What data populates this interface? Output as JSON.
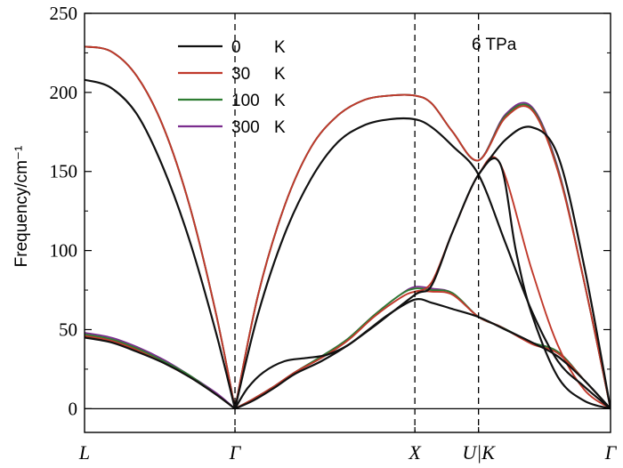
{
  "chart_data": {
    "type": "line",
    "title": "",
    "annotation": "6 TPa",
    "xlabel": "",
    "ylabel": "Frequency/cm⁻¹",
    "ylim": [
      -15,
      250
    ],
    "yticks": [
      0,
      50,
      100,
      150,
      200,
      250
    ],
    "ytick_labels": [
      "0",
      "50",
      "100",
      "150",
      "200",
      "250"
    ],
    "high_symmetry_points": [
      {
        "label": "L",
        "x": 0
      },
      {
        "label": "Γ",
        "x": 0.286
      },
      {
        "label": "X",
        "x": 0.628
      },
      {
        "label": "U|K",
        "x": 0.749
      },
      {
        "label": "Γ",
        "x": 1
      }
    ],
    "vertical_dashed_at": [
      0.286,
      0.628,
      0.749
    ],
    "zero_line": 0,
    "legend": {
      "position": "top-left",
      "entries": [
        {
          "num": "0",
          "unit": "K",
          "color": "#111111"
        },
        {
          "num": "30",
          "unit": "K",
          "color": "#c0392b"
        },
        {
          "num": "100",
          "unit": "K",
          "color": "#2e7d32"
        },
        {
          "num": "300",
          "unit": "K",
          "color": "#7b2d8e"
        }
      ]
    },
    "series": [
      {
        "temperature": "0 K",
        "color": "#111111",
        "branches": [
          {
            "x": [
              0,
              0.05,
              0.1,
              0.15,
              0.2,
              0.25,
              0.286
            ],
            "y": [
              208,
              203,
              186,
              152,
              106,
              48,
              0
            ]
          },
          {
            "x": [
              0,
              0.05,
              0.1,
              0.15,
              0.2,
              0.25,
              0.286
            ],
            "y": [
              45,
              42,
              36,
              29,
              20,
              9,
              0
            ]
          },
          {
            "x": [
              0.286,
              0.33,
              0.38,
              0.43,
              0.48,
              0.53,
              0.58,
              0.628,
              0.66,
              0.7,
              0.749,
              0.8,
              0.85,
              0.9,
              0.95,
              1
            ],
            "y": [
              0,
              60,
              110,
              145,
              168,
              179,
              183,
              183,
              178,
              166,
              148,
              105,
              62,
              30,
              14,
              0
            ]
          },
          {
            "x": [
              0.286,
              0.31,
              0.34,
              0.38,
              0.42,
              0.46,
              0.5,
              0.54,
              0.58,
              0.628,
              0.66,
              0.7,
              0.749,
              0.8,
              0.85,
              0.9,
              0.95,
              1
            ],
            "y": [
              0,
              13,
              23,
              30,
              32,
              34,
              40,
              50,
              60,
              69,
              67,
              63,
              58,
              50,
              42,
              33,
              18,
              0
            ]
          },
          {
            "x": [
              0.286,
              0.32,
              0.36,
              0.4,
              0.45,
              0.5,
              0.55,
              0.628,
              0.66,
              0.7,
              0.749,
              0.79,
              0.82,
              0.85,
              0.9,
              0.95,
              1
            ],
            "y": [
              0,
              5,
              13,
              22,
              30,
              40,
              52,
              72,
              78,
              112,
              148,
              155,
              100,
              60,
              20,
              5,
              0
            ]
          },
          {
            "x": [
              0.749,
              0.8,
              0.85,
              0.9,
              0.95,
              1
            ],
            "y": [
              148,
              170,
              178,
              160,
              90,
              0
            ]
          }
        ]
      },
      {
        "temperature": "30 K",
        "color": "#c0392b",
        "branches": [
          {
            "x": [
              0,
              0.05,
              0.1,
              0.15,
              0.2,
              0.25,
              0.286
            ],
            "y": [
              229,
              226,
              210,
              178,
              128,
              60,
              0
            ]
          },
          {
            "x": [
              0,
              0.05,
              0.1,
              0.15,
              0.2,
              0.25,
              0.286
            ],
            "y": [
              46,
              43,
              37,
              29,
              20,
              9,
              0
            ]
          },
          {
            "x": [
              0.286,
              0.33,
              0.38,
              0.43,
              0.48,
              0.53,
              0.58,
              0.628,
              0.66,
              0.7,
              0.749,
              0.8,
              0.85,
              0.9,
              0.95,
              1
            ],
            "y": [
              0,
              72,
              128,
              165,
              185,
              195,
              198,
              198,
              193,
              175,
              157,
              184,
              189,
              150,
              80,
              0
            ]
          },
          {
            "x": [
              0.286,
              0.32,
              0.36,
              0.4,
              0.45,
              0.5,
              0.55,
              0.6,
              0.628,
              0.66,
              0.7,
              0.749,
              0.79,
              0.85,
              0.9,
              0.95,
              1
            ],
            "y": [
              0,
              6,
              14,
              23,
              32,
              43,
              58,
              70,
              74,
              74,
              72,
              58,
              52,
              41,
              35,
              18,
              0
            ]
          },
          {
            "x": [
              0.628,
              0.66,
              0.7,
              0.749,
              0.79,
              0.85,
              0.9,
              0.95,
              1
            ],
            "y": [
              74,
              80,
              112,
              148,
              155,
              88,
              40,
              12,
              0
            ]
          }
        ]
      },
      {
        "temperature": "100 K",
        "color": "#2e7d32",
        "branches": [
          {
            "x": [
              0,
              0.05,
              0.1,
              0.15,
              0.2,
              0.25,
              0.286
            ],
            "y": [
              229,
              226,
              210,
              178,
              128,
              60,
              0
            ]
          },
          {
            "x": [
              0,
              0.05,
              0.1,
              0.15,
              0.2,
              0.25,
              0.286
            ],
            "y": [
              47,
              44,
              38,
              30,
              21,
              9,
              0
            ]
          },
          {
            "x": [
              0.286,
              0.33,
              0.38,
              0.43,
              0.48,
              0.53,
              0.58,
              0.628,
              0.66,
              0.7,
              0.749,
              0.8,
              0.85,
              0.9,
              0.95,
              1
            ],
            "y": [
              0,
              72,
              128,
              165,
              185,
              195,
              198,
              198,
              193,
              175,
              157,
              185,
              190,
              151,
              80,
              0
            ]
          },
          {
            "x": [
              0.286,
              0.32,
              0.36,
              0.4,
              0.45,
              0.5,
              0.55,
              0.6,
              0.628,
              0.66,
              0.7,
              0.749,
              0.79,
              0.85,
              0.9,
              0.95,
              1
            ],
            "y": [
              0,
              6,
              14,
              23,
              33,
              44,
              59,
              72,
              76,
              75,
              73,
              58,
              52,
              42,
              36,
              18,
              0
            ]
          }
        ]
      },
      {
        "temperature": "300 K",
        "color": "#7b2d8e",
        "branches": [
          {
            "x": [
              0,
              0.05,
              0.1,
              0.15,
              0.2,
              0.25,
              0.286
            ],
            "y": [
              229,
              226,
              210,
              178,
              128,
              60,
              0
            ]
          },
          {
            "x": [
              0,
              0.05,
              0.1,
              0.15,
              0.2,
              0.25,
              0.286
            ],
            "y": [
              48,
              45,
              39,
              31,
              21,
              10,
              0
            ]
          },
          {
            "x": [
              0.286,
              0.33,
              0.38,
              0.43,
              0.48,
              0.53,
              0.58,
              0.628,
              0.66,
              0.7,
              0.749,
              0.8,
              0.85,
              0.9,
              0.95,
              1
            ],
            "y": [
              0,
              72,
              128,
              165,
              185,
              195,
              198,
              198,
              193,
              175,
              157,
              186,
              191,
              152,
              80,
              0
            ]
          },
          {
            "x": [
              0.286,
              0.32,
              0.36,
              0.4,
              0.45,
              0.5,
              0.55,
              0.6,
              0.628,
              0.66,
              0.7,
              0.749,
              0.79,
              0.85,
              0.9,
              0.95,
              1
            ],
            "y": [
              0,
              6,
              14,
              23,
              33,
              44,
              59,
              72,
              77,
              76,
              73,
              58,
              52,
              42,
              36,
              18,
              0
            ]
          }
        ]
      }
    ]
  }
}
